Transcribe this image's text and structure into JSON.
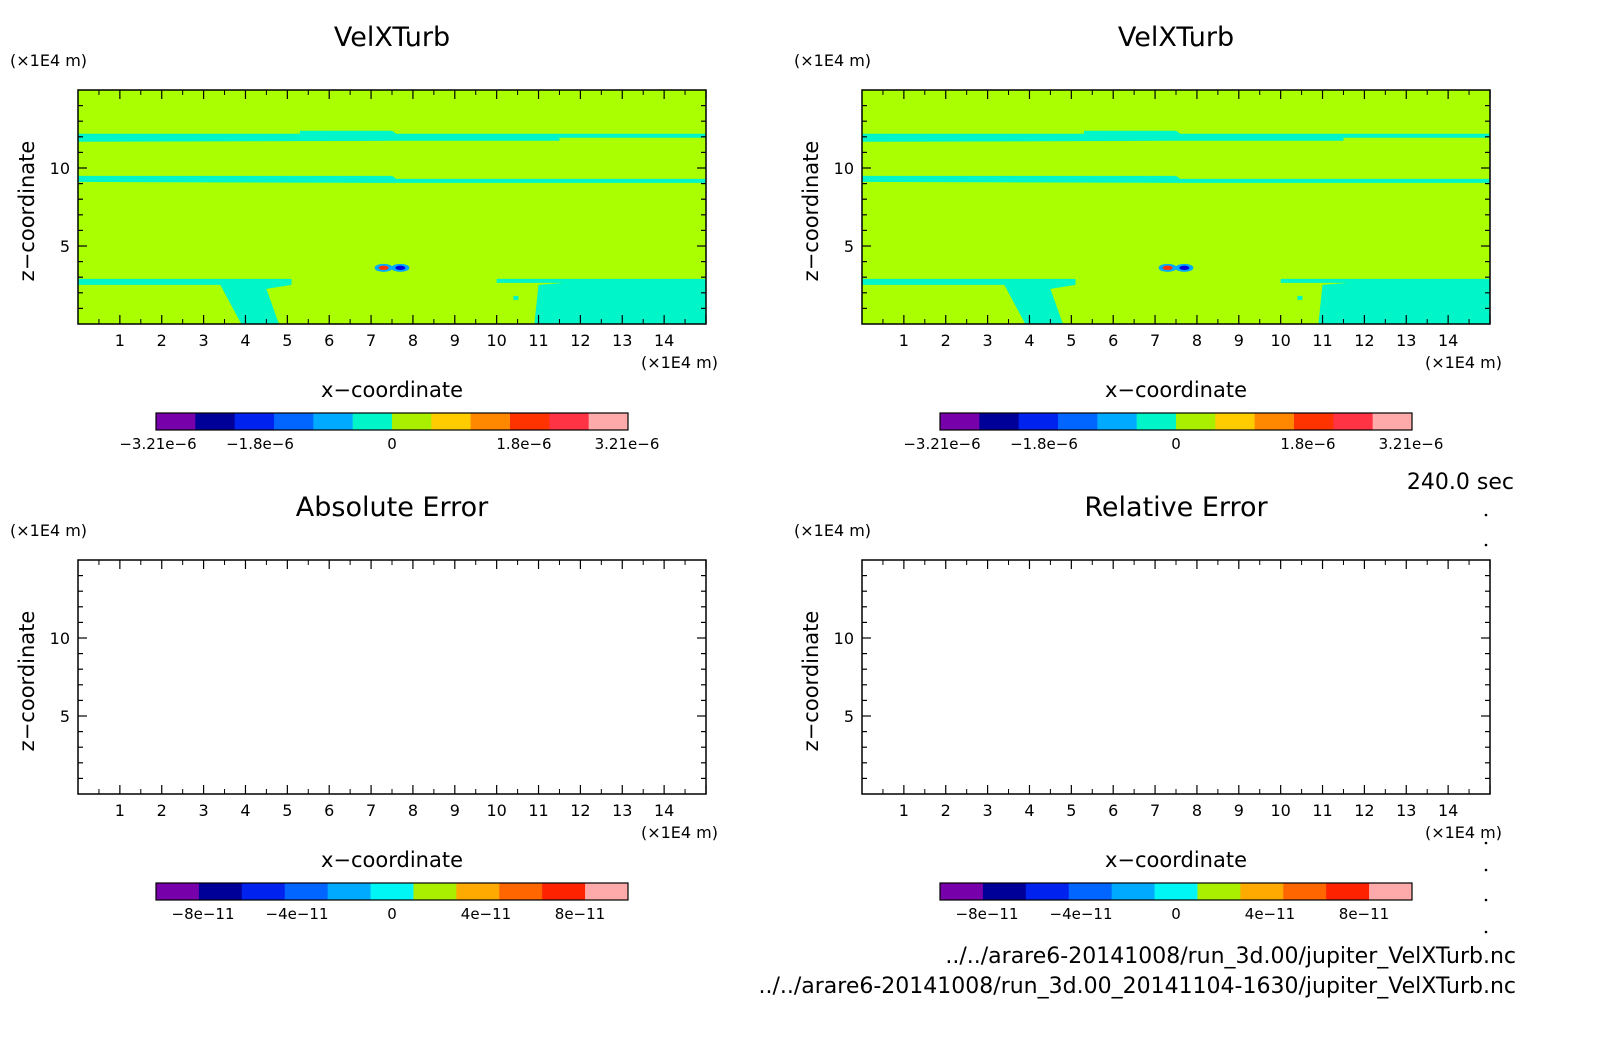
{
  "time_label": "240.0 sec",
  "file_paths": [
    "../../arare6-20141008/run_3d.00/jupiter_VelXTurb.nc",
    "../../arare6-20141008/run_3d.00_20141104-1630/jupiter_VelXTurb.nc"
  ],
  "colors": {
    "field_background": "#aaff00",
    "band": "#00f5c8",
    "warm_blob": "#ff3300",
    "cold_blob": "#0000dd"
  },
  "chart_data": [
    {
      "type": "heatmap",
      "title": "VelXTurb",
      "xlabel": "x−coordinate",
      "ylabel": "z−coordinate",
      "x_unit": "(×1E4 m)",
      "y_unit": "(×1E4 m)",
      "xlim": [
        0,
        15
      ],
      "ylim": [
        0,
        15
      ],
      "xticks": [
        "1",
        "2",
        "3",
        "4",
        "5",
        "6",
        "7",
        "8",
        "9",
        "10",
        "11",
        "12",
        "13",
        "14"
      ],
      "yticks": [
        "5",
        "10"
      ],
      "colorbar": {
        "colors": [
          "#7700aa",
          "#000099",
          "#0022ee",
          "#0066ff",
          "#00aaff",
          "#00f5c8",
          "#aaee00",
          "#ffcc00",
          "#ff8800",
          "#ff3300",
          "#ff3344",
          "#ffaaaa"
        ],
        "tick_labels": [
          "−3.21e−6",
          "−1.8e−6",
          "0",
          "1.8e−6",
          "3.21e−6"
        ]
      },
      "features": [
        {
          "shape": "band",
          "z": 12.0
        },
        {
          "shape": "band",
          "z": 9.3
        },
        {
          "shape": "band",
          "z": 2.7
        },
        {
          "shape": "positive-anomaly",
          "x": 7.3,
          "z": 3.6
        },
        {
          "shape": "negative-anomaly",
          "x": 7.7,
          "z": 3.6
        }
      ]
    },
    {
      "type": "heatmap",
      "title": "VelXTurb",
      "xlabel": "x−coordinate",
      "ylabel": "z−coordinate",
      "x_unit": "(×1E4 m)",
      "y_unit": "(×1E4 m)",
      "xlim": [
        0,
        15
      ],
      "ylim": [
        0,
        15
      ],
      "xticks": [
        "1",
        "2",
        "3",
        "4",
        "5",
        "6",
        "7",
        "8",
        "9",
        "10",
        "11",
        "12",
        "13",
        "14"
      ],
      "yticks": [
        "5",
        "10"
      ],
      "colorbar": {
        "colors": [
          "#7700aa",
          "#000099",
          "#0022ee",
          "#0066ff",
          "#00aaff",
          "#00f5c8",
          "#aaee00",
          "#ffcc00",
          "#ff8800",
          "#ff3300",
          "#ff3344",
          "#ffaaaa"
        ],
        "tick_labels": [
          "−3.21e−6",
          "−1.8e−6",
          "0",
          "1.8e−6",
          "3.21e−6"
        ]
      },
      "features": [
        {
          "shape": "band",
          "z": 12.0
        },
        {
          "shape": "band",
          "z": 9.3
        },
        {
          "shape": "band",
          "z": 2.7
        },
        {
          "shape": "positive-anomaly",
          "x": 7.3,
          "z": 3.6
        },
        {
          "shape": "negative-anomaly",
          "x": 7.7,
          "z": 3.6
        }
      ]
    },
    {
      "type": "heatmap",
      "title": "Absolute Error",
      "xlabel": "x−coordinate",
      "ylabel": "z−coordinate",
      "x_unit": "(×1E4 m)",
      "y_unit": "(×1E4 m)",
      "xlim": [
        0,
        15
      ],
      "ylim": [
        0,
        15
      ],
      "xticks": [
        "1",
        "2",
        "3",
        "4",
        "5",
        "6",
        "7",
        "8",
        "9",
        "10",
        "11",
        "12",
        "13",
        "14"
      ],
      "yticks": [
        "5",
        "10"
      ],
      "empty": true,
      "colorbar": {
        "colors": [
          "#7700aa",
          "#000099",
          "#0022ee",
          "#0066ff",
          "#00aaff",
          "#00f5f5",
          "#aaee00",
          "#ffaa00",
          "#ff6600",
          "#ff2200",
          "#ffaaaa"
        ],
        "tick_labels": [
          "−8e−11",
          "−4e−11",
          "0",
          "4e−11",
          "8e−11"
        ]
      }
    },
    {
      "type": "heatmap",
      "title": "Relative Error",
      "xlabel": "x−coordinate",
      "ylabel": "z−coordinate",
      "x_unit": "(×1E4 m)",
      "y_unit": "(×1E4 m)",
      "xlim": [
        0,
        15
      ],
      "ylim": [
        0,
        15
      ],
      "xticks": [
        "1",
        "2",
        "3",
        "4",
        "5",
        "6",
        "7",
        "8",
        "9",
        "10",
        "11",
        "12",
        "13",
        "14"
      ],
      "yticks": [
        "5",
        "10"
      ],
      "empty": true,
      "colorbar": {
        "colors": [
          "#7700aa",
          "#000099",
          "#0022ee",
          "#0066ff",
          "#00aaff",
          "#00f5f5",
          "#aaee00",
          "#ffaa00",
          "#ff6600",
          "#ff2200",
          "#ffaaaa"
        ],
        "tick_labels": [
          "−8e−11",
          "−4e−11",
          "0",
          "4e−11",
          "8e−11"
        ]
      }
    }
  ]
}
